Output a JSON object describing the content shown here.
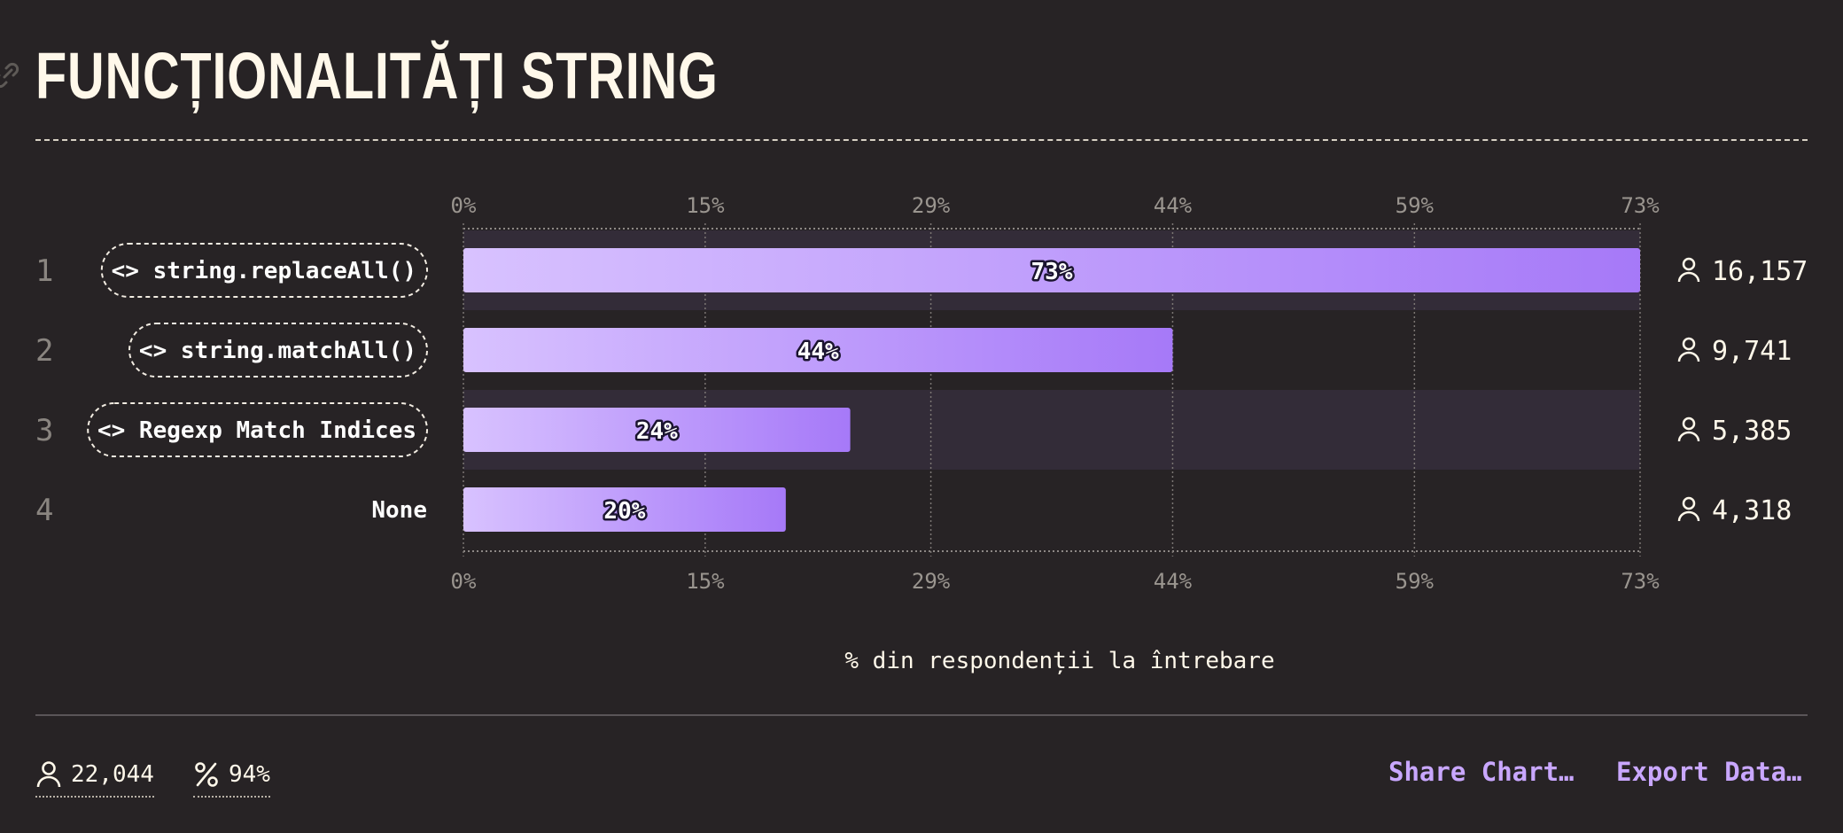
{
  "title": "FUNCȚIONALITĂȚI STRING",
  "colors": {
    "background": "#272325",
    "text": "#fff8ea",
    "bar_start": "#d8c2ff",
    "bar_end": "#a679f8",
    "row_band": "#332c38",
    "accent": "#c9a7ff"
  },
  "chart_data": {
    "type": "bar",
    "orientation": "horizontal",
    "categories": [
      "string.replaceAll()",
      "string.matchAll()",
      "Regexp Match Indices",
      "None"
    ],
    "category_is_code": [
      true,
      true,
      true,
      false
    ],
    "ranks": [
      "1",
      "2",
      "3",
      "4"
    ],
    "values": [
      73,
      44,
      24,
      20
    ],
    "value_labels": [
      "73%",
      "44%",
      "24%",
      "20%"
    ],
    "counts": [
      "16,157",
      "9,741",
      "5,385",
      "4,318"
    ],
    "xlim": [
      0,
      73
    ],
    "ticks": [
      0,
      15,
      29,
      44,
      59,
      73
    ],
    "tick_labels": [
      "0%",
      "15%",
      "29%",
      "44%",
      "59%",
      "73%"
    ],
    "xlabel": "% din respondenții la întrebare",
    "grid": true
  },
  "footer": {
    "respondents": "22,044",
    "percentage": "94%",
    "share_label": "Share Chart…",
    "export_label": "Export Data…"
  }
}
